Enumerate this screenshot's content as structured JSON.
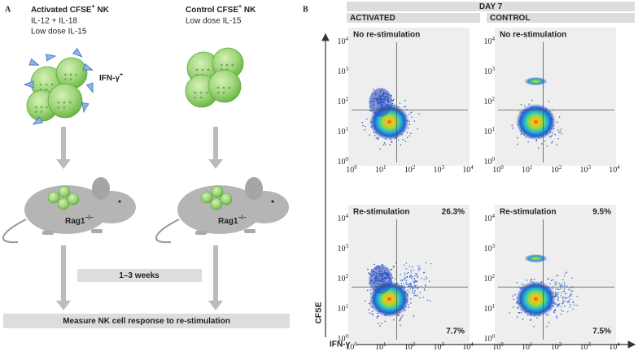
{
  "panel_a": {
    "label": "A",
    "groups": [
      {
        "title_parts": [
          "Activated CFSE",
          "+",
          " NK"
        ],
        "conditions": [
          "IL-12 + IL-18",
          "Low dose IL-15"
        ],
        "marker_parts": [
          "IFN-γ",
          "+"
        ]
      },
      {
        "title_parts": [
          "Control CFSE",
          "+",
          " NK"
        ],
        "conditions": [
          "Low dose IL-15"
        ]
      }
    ],
    "mouse_label_parts": [
      "Rag1",
      "−/−"
    ],
    "interval": "1–3 weeks",
    "readout": "Measure NK cell response to re-stimulation"
  },
  "panel_b": {
    "label": "B",
    "timepoint": "DAY 7",
    "columns": [
      "ACTIVATED",
      "CONTROL"
    ],
    "rows": [
      "No re-stimulation",
      "Re-stimulation"
    ],
    "restim_quadrants": [
      {
        "upper_right": "26.3%",
        "lower_right": "7.7%"
      },
      {
        "upper_right": "9.5%",
        "lower_right": "7.5%"
      }
    ],
    "decade_ticks": [
      {
        "base": "10",
        "exponent": "0"
      },
      {
        "base": "10",
        "exponent": "1"
      },
      {
        "base": "10",
        "exponent": "2"
      },
      {
        "base": "10",
        "exponent": "3"
      },
      {
        "base": "10",
        "exponent": "4"
      }
    ],
    "x_axis_label": "IFN-γ",
    "y_axis_label": "CFSE"
  }
}
